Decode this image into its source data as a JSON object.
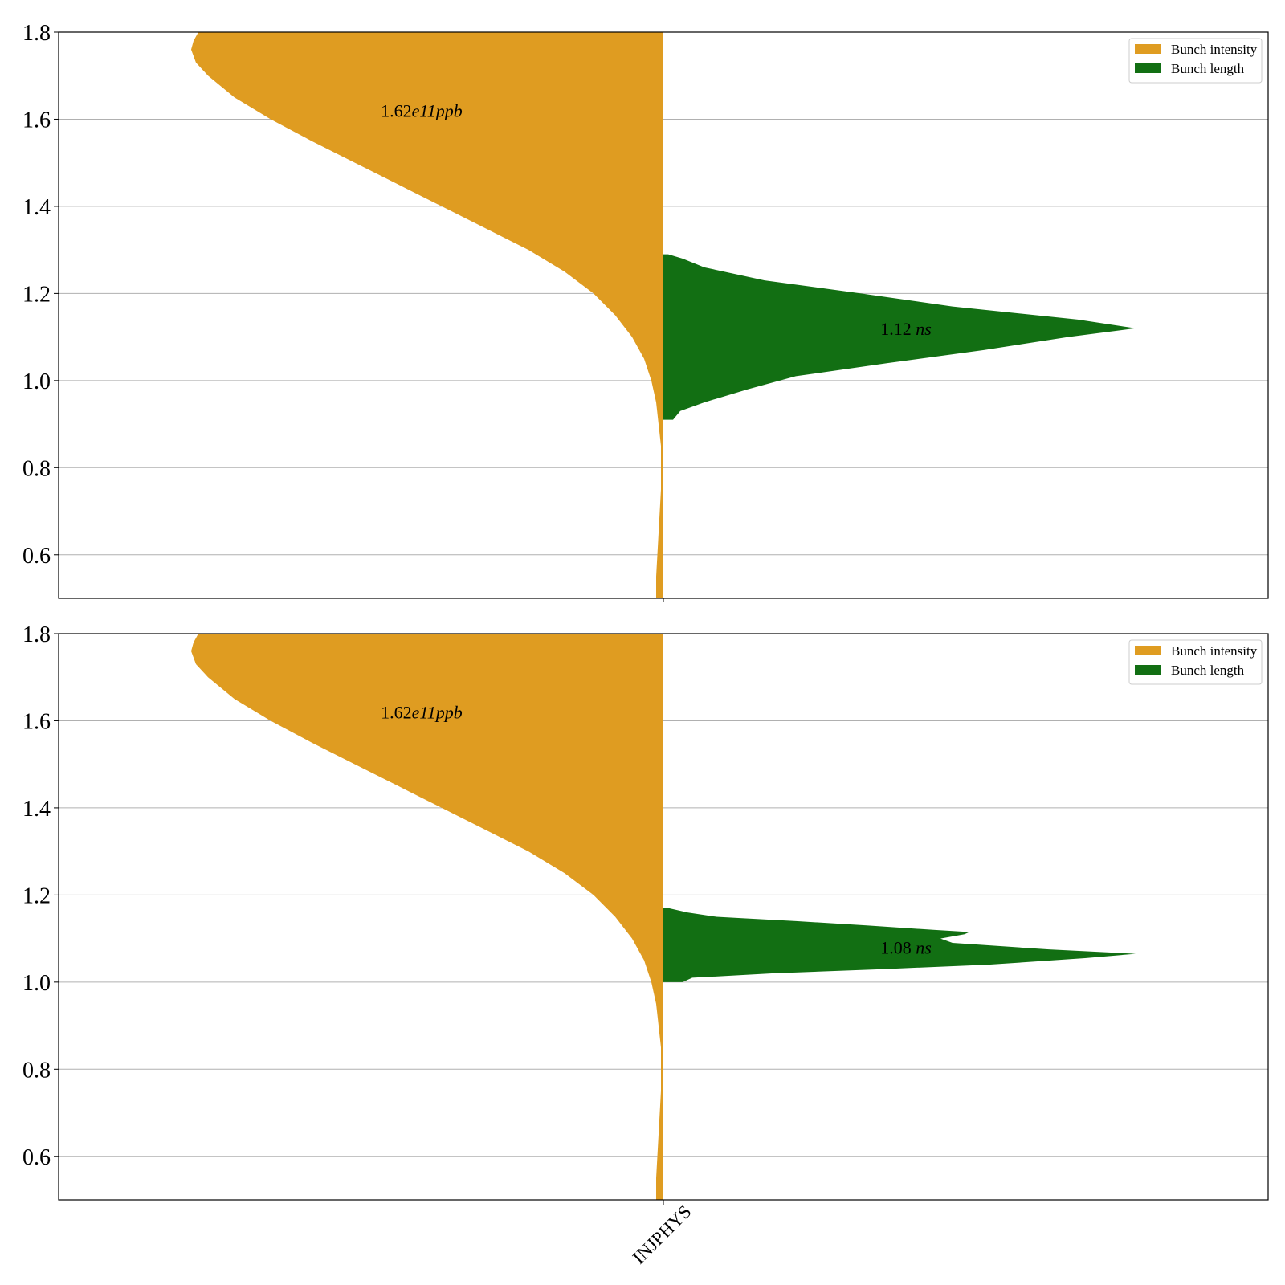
{
  "chart_data": [
    {
      "type": "violin",
      "panel": "top",
      "category": "",
      "ylim": [
        0.5,
        1.8
      ],
      "yticks": [
        "0.6",
        "0.8",
        "1.0",
        "1.2",
        "1.4",
        "1.6",
        "1.8"
      ],
      "grid": true,
      "legend_position": "top-right",
      "series": [
        {
          "name": "Bunch intensity",
          "side": "left",
          "color": "#DF9C21",
          "annotation": {
            "value": "1.62",
            "unit": "e11ppb",
            "y": 1.62
          },
          "profile": [
            [
              0.47,
              0.03
            ],
            [
              0.55,
              0.03
            ],
            [
              0.65,
              0.02
            ],
            [
              0.75,
              0.01
            ],
            [
              0.85,
              0.01
            ],
            [
              0.9,
              0.02
            ],
            [
              0.95,
              0.03
            ],
            [
              1.0,
              0.05
            ],
            [
              1.05,
              0.08
            ],
            [
              1.1,
              0.13
            ],
            [
              1.15,
              0.2
            ],
            [
              1.2,
              0.29
            ],
            [
              1.25,
              0.41
            ],
            [
              1.3,
              0.56
            ],
            [
              1.35,
              0.74
            ],
            [
              1.4,
              0.92
            ],
            [
              1.45,
              1.1
            ],
            [
              1.5,
              1.28
            ],
            [
              1.55,
              1.46
            ],
            [
              1.6,
              1.63
            ],
            [
              1.65,
              1.78
            ],
            [
              1.7,
              1.89
            ],
            [
              1.73,
              1.94
            ],
            [
              1.76,
              1.96
            ],
            [
              1.78,
              1.95
            ],
            [
              1.8,
              1.93
            ]
          ]
        },
        {
          "name": "Bunch length",
          "side": "right",
          "color": "#126F13",
          "annotation": {
            "value": "1.12",
            "unit": "ns",
            "y": 1.12
          },
          "profile": [
            [
              0.91,
              0.04
            ],
            [
              0.93,
              0.07
            ],
            [
              0.95,
              0.17
            ],
            [
              0.98,
              0.35
            ],
            [
              1.01,
              0.55
            ],
            [
              1.04,
              0.93
            ],
            [
              1.07,
              1.33
            ],
            [
              1.1,
              1.68
            ],
            [
              1.12,
              1.96
            ],
            [
              1.14,
              1.72
            ],
            [
              1.17,
              1.2
            ],
            [
              1.2,
              0.82
            ],
            [
              1.23,
              0.42
            ],
            [
              1.26,
              0.17
            ],
            [
              1.28,
              0.08
            ],
            [
              1.29,
              0.02
            ]
          ]
        }
      ]
    },
    {
      "type": "violin",
      "panel": "bottom",
      "category": "INJPHYS",
      "ylim": [
        0.5,
        1.8
      ],
      "yticks": [
        "0.6",
        "0.8",
        "1.0",
        "1.2",
        "1.4",
        "1.6",
        "1.8"
      ],
      "grid": true,
      "legend_position": "top-right",
      "series": [
        {
          "name": "Bunch intensity",
          "side": "left",
          "color": "#DF9C21",
          "annotation": {
            "value": "1.62",
            "unit": "e11ppb",
            "y": 1.62
          },
          "profile": [
            [
              0.47,
              0.03
            ],
            [
              0.55,
              0.03
            ],
            [
              0.65,
              0.02
            ],
            [
              0.75,
              0.01
            ],
            [
              0.85,
              0.01
            ],
            [
              0.9,
              0.02
            ],
            [
              0.95,
              0.03
            ],
            [
              1.0,
              0.05
            ],
            [
              1.05,
              0.08
            ],
            [
              1.1,
              0.13
            ],
            [
              1.15,
              0.2
            ],
            [
              1.2,
              0.29
            ],
            [
              1.25,
              0.41
            ],
            [
              1.3,
              0.56
            ],
            [
              1.35,
              0.74
            ],
            [
              1.4,
              0.92
            ],
            [
              1.45,
              1.1
            ],
            [
              1.5,
              1.28
            ],
            [
              1.55,
              1.46
            ],
            [
              1.6,
              1.63
            ],
            [
              1.65,
              1.78
            ],
            [
              1.7,
              1.89
            ],
            [
              1.73,
              1.94
            ],
            [
              1.76,
              1.96
            ],
            [
              1.78,
              1.95
            ],
            [
              1.8,
              1.93
            ]
          ]
        },
        {
          "name": "Bunch length",
          "side": "right",
          "color": "#126F13",
          "annotation": {
            "value": "1.08",
            "unit": "ns",
            "y": 1.08
          },
          "profile": [
            [
              1.0,
              0.08
            ],
            [
              1.01,
              0.12
            ],
            [
              1.02,
              0.45
            ],
            [
              1.03,
              0.92
            ],
            [
              1.04,
              1.35
            ],
            [
              1.055,
              1.75
            ],
            [
              1.065,
              1.96
            ],
            [
              1.075,
              1.6
            ],
            [
              1.09,
              1.2
            ],
            [
              1.1,
              1.15
            ],
            [
              1.11,
              1.25
            ],
            [
              1.115,
              1.27
            ],
            [
              1.12,
              1.12
            ],
            [
              1.13,
              0.85
            ],
            [
              1.14,
              0.55
            ],
            [
              1.15,
              0.22
            ],
            [
              1.16,
              0.1
            ],
            [
              1.17,
              0.02
            ]
          ]
        }
      ]
    }
  ]
}
